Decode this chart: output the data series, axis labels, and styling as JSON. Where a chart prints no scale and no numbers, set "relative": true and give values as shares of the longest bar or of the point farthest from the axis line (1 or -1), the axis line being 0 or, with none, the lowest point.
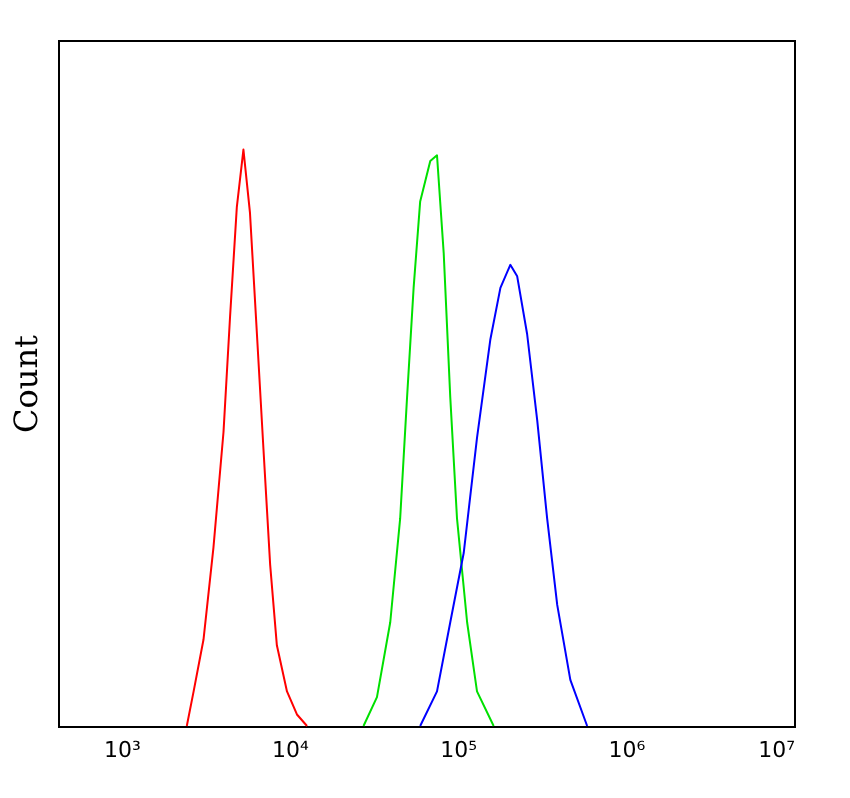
{
  "chart_data": {
    "type": "line",
    "relative": true,
    "ylabel": "Count",
    "log": "x",
    "grid": false,
    "tick_labels": "x",
    "marker": "none",
    "line_style": "solid",
    "xlim": [
      420,
      10000000
    ],
    "xticks": [
      {
        "value": 1000,
        "label": "10³"
      },
      {
        "value": 10000,
        "label": "10⁴"
      },
      {
        "value": 100000,
        "label": "10⁵"
      },
      {
        "value": 1000000,
        "label": "10⁶"
      },
      {
        "value": 10000000,
        "label": "10⁷"
      }
    ],
    "series": [
      {
        "color": "#ff0000",
        "x": [
          2450,
          2690,
          3080,
          3530,
          4050,
          4430,
          4860,
          5320,
          5820,
          6400,
          7000,
          7670,
          8410,
          9660,
          11070,
          12710
        ],
        "values": [
          0,
          0.06,
          0.15,
          0.31,
          0.51,
          0.71,
          0.9,
          1.0,
          0.89,
          0.68,
          0.48,
          0.28,
          0.14,
          0.06,
          0.02,
          0
        ]
      },
      {
        "color": "#00e000",
        "x": [
          27540,
          33110,
          39720,
          45500,
          50000,
          54700,
          59840,
          68710,
          75340,
          82600,
          90360,
          99080,
          113800,
          130300,
          163700
        ],
        "values": [
          0,
          0.05,
          0.18,
          0.36,
          0.57,
          0.76,
          0.91,
          0.98,
          0.99,
          0.82,
          0.57,
          0.36,
          0.18,
          0.06,
          0
        ]
      },
      {
        "color": "#0000ff",
        "x": [
          59840,
          75340,
          90360,
          108600,
          130300,
          156300,
          179500,
          205600,
          225900,
          258800,
          297200,
          340400,
          390800,
          467700,
          588800
        ],
        "values": [
          0,
          0.06,
          0.18,
          0.3,
          0.5,
          0.67,
          0.76,
          0.8,
          0.78,
          0.68,
          0.53,
          0.36,
          0.21,
          0.08,
          0
        ]
      }
    ]
  }
}
